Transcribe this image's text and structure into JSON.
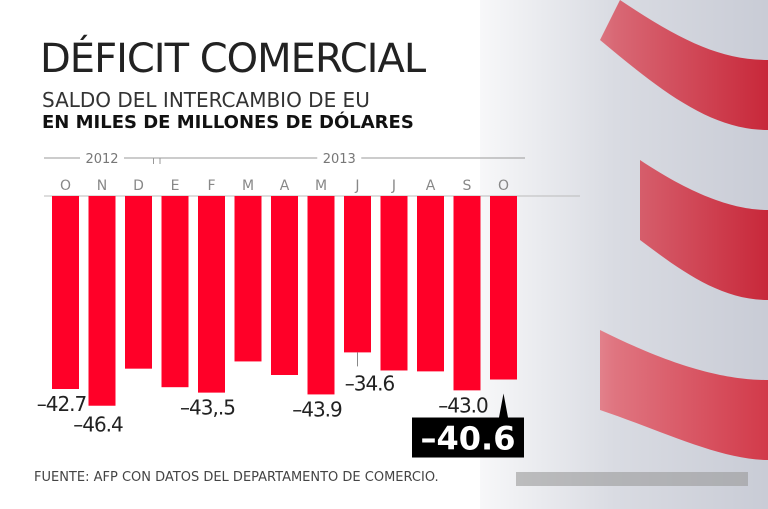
{
  "title": "DÉFICIT COMERCIAL",
  "subtitle": "SALDO DEL INTERCAMBIO DE EU",
  "units": "EN MILES DE MILLONES DE DÓLARES",
  "source": "FUENTE: AFP CON DATOS DEL DEPARTAMENTO DE COMERCIO.",
  "chart_data": {
    "type": "bar",
    "title": "DÉFICIT COMERCIAL",
    "years": [
      {
        "label": "2012",
        "months": 3
      },
      {
        "label": "2013",
        "months": 10
      }
    ],
    "categories": [
      "O",
      "N",
      "D",
      "E",
      "F",
      "M",
      "A",
      "M",
      "J",
      "J",
      "A",
      "S",
      "O"
    ],
    "values": [
      -42.7,
      -46.4,
      -38.2,
      -42.3,
      -43.5,
      -36.6,
      -39.6,
      -43.9,
      -34.6,
      -38.6,
      -38.8,
      -43.0,
      -40.6
    ],
    "labels": [
      "–42.7",
      "–46.4",
      "",
      "",
      "–43,.5",
      "",
      "",
      "–43.9",
      "–34.6",
      "",
      "",
      "–43.0",
      "–40.6"
    ],
    "highlight_index": 12,
    "ylim": [
      -50,
      0
    ],
    "bar_color": "#ff0028",
    "xlabel": "",
    "ylabel": "EN MILES DE MILLONES DE DÓLARES"
  }
}
